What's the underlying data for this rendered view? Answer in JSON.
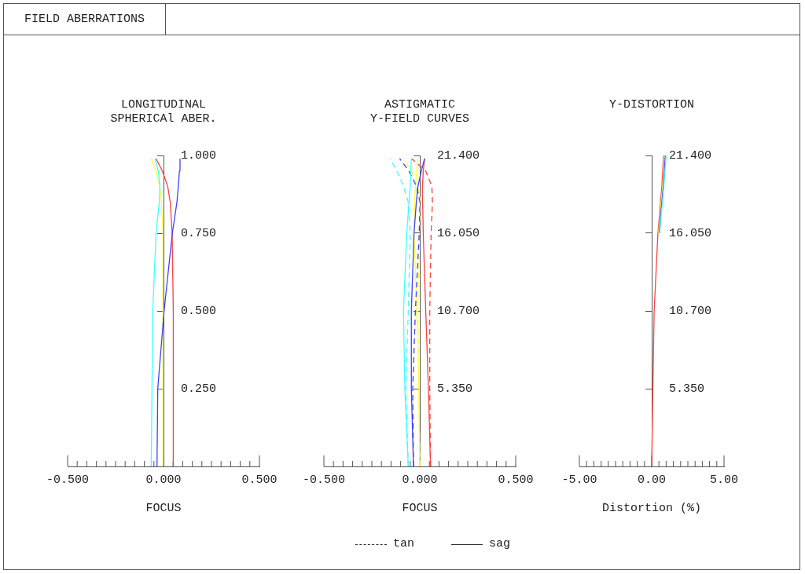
{
  "chart_data": [
    {
      "type": "line",
      "title": "LONGITUDINAL\nSPHERICAl ABER.",
      "xlabel": "FOCUS",
      "annotations": [
        "FIELD ABERRATIONS"
      ],
      "marker": "none",
      "grid": false,
      "legend": false,
      "xlim": [
        -0.5,
        0.5
      ],
      "ylim": [
        0,
        1
      ],
      "xticks": [
        {
          "value": -0.5,
          "label": "-0.500"
        },
        {
          "value": -0.45,
          "label": null
        },
        {
          "value": -0.4,
          "label": null
        },
        {
          "value": -0.35,
          "label": null
        },
        {
          "value": -0.3,
          "label": null
        },
        {
          "value": -0.25,
          "label": null
        },
        {
          "value": -0.2,
          "label": null
        },
        {
          "value": -0.15,
          "label": null
        },
        {
          "value": -0.1,
          "label": null
        },
        {
          "value": -0.05,
          "label": null
        },
        {
          "value": 0,
          "label": "0.000"
        },
        {
          "value": 0.05,
          "label": null
        },
        {
          "value": 0.1,
          "label": null
        },
        {
          "value": 0.15,
          "label": null
        },
        {
          "value": 0.2,
          "label": null
        },
        {
          "value": 0.25,
          "label": null
        },
        {
          "value": 0.3,
          "label": null
        },
        {
          "value": 0.35,
          "label": null
        },
        {
          "value": 0.4,
          "label": null
        },
        {
          "value": 0.45,
          "label": null
        },
        {
          "value": 0.5,
          "label": "0.500"
        }
      ],
      "yticks": [
        {
          "value": 0.25,
          "label": "0.250"
        },
        {
          "value": 0.5,
          "label": "0.500"
        },
        {
          "value": 0.75,
          "label": "0.750"
        },
        {
          "value": 1,
          "label": "1.000"
        }
      ],
      "series": [
        {
          "type": "line",
          "color": "#40ffff",
          "line_style": "solid",
          "x": [
            -0.064,
            -0.06,
            -0.056,
            -0.039,
            -0.022,
            -0.019,
            -0.027,
            -0.044
          ],
          "values": [
            0,
            0.25,
            0.5,
            0.75,
            0.85,
            0.9,
            0.95,
            0.99
          ]
        },
        {
          "type": "line",
          "color": "#4040ff",
          "line_style": "solid",
          "x": [
            -0.034,
            -0.03,
            0.003,
            0.046,
            0.07,
            0.077,
            0.083,
            0.086
          ],
          "values": [
            0,
            0.25,
            0.5,
            0.75,
            0.85,
            0.9,
            0.95,
            0.99
          ]
        },
        {
          "type": "line",
          "color": "#ffff40",
          "line_style": "solid",
          "x": [
            -0.001,
            -0.001,
            -0.004,
            -0.004,
            -0.011,
            -0.019,
            -0.039,
            -0.064
          ],
          "values": [
            0,
            0.25,
            0.5,
            0.75,
            0.85,
            0.9,
            0.95,
            0.99
          ]
        },
        {
          "type": "line",
          "color": "#ff4040",
          "line_style": "solid",
          "x": [
            0.053,
            0.051,
            0.045,
            0.035,
            0.022,
            -0.006,
            -0.039
          ],
          "values": [
            0,
            0.5,
            0.75,
            0.85,
            0.9,
            0.95,
            0.99
          ]
        }
      ]
    },
    {
      "type": "line",
      "title": "ASTIGMATIC\nY-FIELD CURVES",
      "xlabel": "FOCUS",
      "annotations": [
        "tan",
        "sag"
      ],
      "marker": "none",
      "grid": false,
      "legend": false,
      "xlim": [
        -0.5,
        0.5
      ],
      "ylim": [
        0,
        21.4
      ],
      "xticks": [
        {
          "value": -0.5,
          "label": "-0.500"
        },
        {
          "value": -0.45,
          "label": null
        },
        {
          "value": -0.4,
          "label": null
        },
        {
          "value": -0.35,
          "label": null
        },
        {
          "value": -0.3,
          "label": null
        },
        {
          "value": -0.25,
          "label": null
        },
        {
          "value": -0.2,
          "label": null
        },
        {
          "value": -0.15,
          "label": null
        },
        {
          "value": -0.1,
          "label": null
        },
        {
          "value": -0.05,
          "label": null
        },
        {
          "value": 0,
          "label": "0.000"
        },
        {
          "value": 0.05,
          "label": null
        },
        {
          "value": 0.1,
          "label": null
        },
        {
          "value": 0.15,
          "label": null
        },
        {
          "value": 0.2,
          "label": null
        },
        {
          "value": 0.25,
          "label": null
        },
        {
          "value": 0.3,
          "label": null
        },
        {
          "value": 0.35,
          "label": null
        },
        {
          "value": 0.4,
          "label": null
        },
        {
          "value": 0.45,
          "label": null
        },
        {
          "value": 0.5,
          "label": "0.500"
        }
      ],
      "yticks": [
        {
          "value": 5.35,
          "label": "5.350"
        },
        {
          "value": 10.7,
          "label": "10.700"
        },
        {
          "value": 16.05,
          "label": "16.050"
        },
        {
          "value": 21.4,
          "label": "21.400"
        }
      ],
      "series": [
        {
          "type": "line",
          "color": "#40ffff",
          "line_style": "solid",
          "x": [
            -0.06,
            -0.078,
            -0.085,
            -0.068,
            -0.056,
            -0.05,
            -0.047,
            -0.044
          ],
          "values": [
            0,
            5.35,
            10.7,
            16.05,
            18.19,
            19.26,
            20.33,
            21.19
          ]
        },
        {
          "type": "line",
          "color": "#40ffff",
          "line_style": "dashed",
          "x": [
            -0.06,
            -0.073,
            -0.06,
            -0.05,
            -0.06,
            -0.085,
            -0.119,
            -0.156
          ],
          "values": [
            0,
            5.35,
            10.7,
            16.05,
            18.19,
            19.26,
            20.33,
            21.19
          ]
        },
        {
          "type": "line",
          "color": "#4040ff",
          "line_style": "solid",
          "x": [
            -0.033,
            -0.044,
            -0.044,
            -0.03,
            -0.018,
            -0.01,
            0.008,
            0.025
          ],
          "values": [
            0,
            5.35,
            10.7,
            16.05,
            18.19,
            19.26,
            20.33,
            21.19
          ]
        },
        {
          "type": "line",
          "color": "#4040ff",
          "line_style": "dashed",
          "x": [
            -0.033,
            -0.037,
            -0.023,
            -0.003,
            0.001,
            -0.016,
            -0.057,
            -0.105
          ],
          "values": [
            0,
            5.35,
            10.7,
            16.05,
            18.19,
            19.26,
            20.33,
            21.19
          ]
        },
        {
          "type": "line",
          "color": "#ffff40",
          "line_style": "solid",
          "x": [
            0,
            -0.005,
            -0.016,
            -0.03,
            -0.027,
            -0.023,
            -0.016,
            -0.01
          ],
          "values": [
            0,
            5.35,
            10.7,
            16.05,
            18.19,
            19.26,
            20.33,
            21.19
          ]
        },
        {
          "type": "line",
          "color": "#ffff40",
          "line_style": "dashed",
          "x": [
            0,
            -0.005,
            -0.01,
            -0.003,
            0.004,
            -0.01,
            -0.044,
            -0.085
          ],
          "values": [
            0,
            5.35,
            10.7,
            16.05,
            18.19,
            19.26,
            20.33,
            21.19
          ]
        },
        {
          "type": "line",
          "color": "#ff4040",
          "line_style": "solid",
          "x": [
            0.056,
            0.045,
            0.031,
            0.018,
            0.015,
            0.014,
            0.018,
            0.025
          ],
          "values": [
            0,
            5.35,
            10.7,
            16.05,
            18.19,
            19.26,
            20.33,
            21.19
          ]
        },
        {
          "type": "line",
          "color": "#ff4040",
          "line_style": "dashed",
          "x": [
            0.056,
            0.052,
            0.052,
            0.059,
            0.066,
            0.063,
            0.031,
            -0.044
          ],
          "values": [
            0,
            5.35,
            10.7,
            16.05,
            18.19,
            19.26,
            20.33,
            21.19
          ]
        }
      ]
    },
    {
      "type": "line",
      "title": "Y-DISTORTION",
      "xlabel": "Distortion (%)",
      "marker": "none",
      "grid": false,
      "legend": false,
      "xlim": [
        -5,
        5
      ],
      "ylim": [
        0,
        21.4
      ],
      "xticks": [
        {
          "value": -5,
          "label": "-5.00"
        },
        {
          "value": -4.5,
          "label": null
        },
        {
          "value": -4,
          "label": null
        },
        {
          "value": -3.5,
          "label": null
        },
        {
          "value": -3,
          "label": null
        },
        {
          "value": -2.5,
          "label": null
        },
        {
          "value": -2,
          "label": null
        },
        {
          "value": -1.5,
          "label": null
        },
        {
          "value": -1,
          "label": null
        },
        {
          "value": -0.5,
          "label": null
        },
        {
          "value": 0,
          "label": "0.00"
        },
        {
          "value": 0.5,
          "label": null
        },
        {
          "value": 1,
          "label": null
        },
        {
          "value": 1.5,
          "label": null
        },
        {
          "value": 2,
          "label": null
        },
        {
          "value": 2.5,
          "label": null
        },
        {
          "value": 3,
          "label": null
        },
        {
          "value": 3.5,
          "label": null
        },
        {
          "value": 4,
          "label": null
        },
        {
          "value": 4.5,
          "label": null
        },
        {
          "value": 5,
          "label": "5.00"
        }
      ],
      "yticks": [
        {
          "value": 5.35,
          "label": "5.350"
        },
        {
          "value": 10.7,
          "label": "10.700"
        },
        {
          "value": 16.05,
          "label": "16.050"
        },
        {
          "value": 21.4,
          "label": "21.400"
        }
      ],
      "series": [
        {
          "type": "line",
          "color": "#40ffff",
          "line_style": "solid",
          "x": [
            0.55,
            0.84,
            1.0
          ],
          "values": [
            16.05,
            19.26,
            21.4
          ]
        },
        {
          "type": "line",
          "color": "#4040ff",
          "line_style": "solid",
          "x": [
            0.51,
            0.8,
            0.94
          ],
          "values": [
            16.05,
            19.26,
            21.4
          ]
        },
        {
          "type": "line",
          "color": "#ffff40",
          "line_style": "solid",
          "x": [
            0.47,
            0.76,
            0.88
          ],
          "values": [
            16.05,
            19.26,
            21.4
          ]
        },
        {
          "type": "line",
          "color": "#ff4040",
          "line_style": "solid",
          "x": [
            0,
            0.08,
            0.17,
            0.43,
            0.7,
            0.82
          ],
          "values": [
            0,
            5.35,
            10.7,
            16.05,
            19.26,
            21.4
          ]
        }
      ]
    }
  ]
}
